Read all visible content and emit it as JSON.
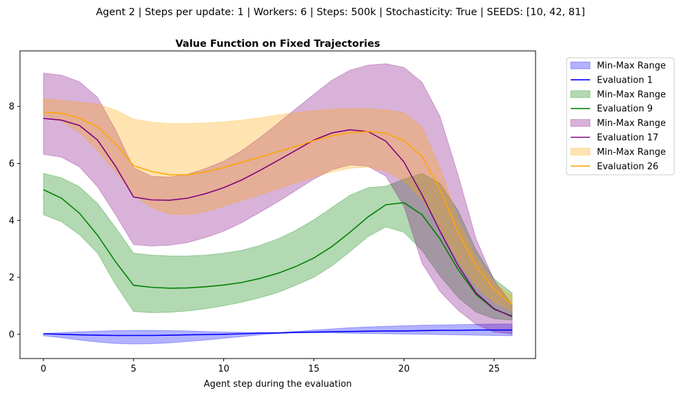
{
  "chart_data": {
    "type": "line",
    "suptitle": "Agent 2 | Steps per update: 1 | Workers: 6 | Steps: 500k | Stochasticity: True | SEEDS: [10, 42, 81]",
    "title": "Value Function on Fixed Trajectories",
    "xlabel": "Agent step during the evaluation",
    "ylabel": "",
    "xlim": [
      -1.3,
      27.3
    ],
    "ylim": [
      -0.85,
      9.95
    ],
    "xticks": [
      0,
      5,
      10,
      15,
      20,
      25
    ],
    "yticks": [
      0,
      2,
      4,
      6,
      8
    ],
    "grid": false,
    "legend_position": "outside-right",
    "x": [
      0,
      1,
      2,
      3,
      4,
      5,
      6,
      7,
      8,
      9,
      10,
      11,
      12,
      13,
      14,
      15,
      16,
      17,
      18,
      19,
      20,
      21,
      22,
      23,
      24,
      25,
      26
    ],
    "series": [
      {
        "name": "Evaluation 1",
        "band_name": "Min-Max Range",
        "color": "#0000ff",
        "band_color": "#0000ff",
        "mean": [
          0.02,
          0.0,
          -0.02,
          -0.03,
          -0.04,
          -0.04,
          -0.04,
          -0.03,
          -0.02,
          -0.01,
          0.0,
          0.02,
          0.04,
          0.05,
          0.07,
          0.08,
          0.09,
          0.1,
          0.11,
          0.12,
          0.12,
          0.13,
          0.14,
          0.14,
          0.15,
          0.15,
          0.15
        ],
        "min": [
          -0.05,
          -0.12,
          -0.2,
          -0.27,
          -0.32,
          -0.34,
          -0.33,
          -0.3,
          -0.25,
          -0.2,
          -0.14,
          -0.08,
          -0.02,
          0.03,
          0.05,
          0.05,
          0.05,
          0.04,
          0.03,
          0.02,
          0.01,
          0.0,
          -0.01,
          -0.02,
          -0.03,
          -0.04,
          -0.05
        ],
        "max": [
          0.03,
          0.06,
          0.09,
          0.11,
          0.13,
          0.14,
          0.14,
          0.13,
          0.12,
          0.1,
          0.08,
          0.07,
          0.06,
          0.06,
          0.1,
          0.15,
          0.19,
          0.23,
          0.26,
          0.28,
          0.3,
          0.32,
          0.33,
          0.34,
          0.35,
          0.36,
          0.36
        ]
      },
      {
        "name": "Evaluation 9",
        "band_name": "Min-Max Range",
        "color": "#008000",
        "band_color": "#008000",
        "mean": [
          5.08,
          4.78,
          4.25,
          3.48,
          2.55,
          1.72,
          1.65,
          1.62,
          1.63,
          1.67,
          1.73,
          1.82,
          1.96,
          2.14,
          2.38,
          2.68,
          3.08,
          3.58,
          4.12,
          4.55,
          4.62,
          4.2,
          3.35,
          2.28,
          1.4,
          0.88,
          0.64
        ],
        "min": [
          4.2,
          3.95,
          3.5,
          2.85,
          1.75,
          0.8,
          0.76,
          0.77,
          0.82,
          0.9,
          1.0,
          1.13,
          1.28,
          1.47,
          1.72,
          2.0,
          2.4,
          2.9,
          3.43,
          3.77,
          3.58,
          2.95,
          2.05,
          1.3,
          0.78,
          0.55,
          0.5
        ],
        "max": [
          5.65,
          5.5,
          5.18,
          4.6,
          3.75,
          2.85,
          2.78,
          2.75,
          2.75,
          2.78,
          2.85,
          2.95,
          3.12,
          3.35,
          3.65,
          4.02,
          4.45,
          4.88,
          5.15,
          5.2,
          5.45,
          5.65,
          5.3,
          4.35,
          2.95,
          1.95,
          1.45
        ]
      },
      {
        "name": "Evaluation 17",
        "band_name": "Min-Max Range",
        "color": "#800080",
        "band_color": "#800080",
        "mean": [
          7.58,
          7.52,
          7.33,
          6.82,
          5.9,
          4.82,
          4.72,
          4.71,
          4.78,
          4.94,
          5.15,
          5.42,
          5.75,
          6.1,
          6.46,
          6.82,
          7.07,
          7.18,
          7.12,
          6.78,
          6.05,
          4.9,
          3.62,
          2.42,
          1.45,
          0.9,
          0.62
        ],
        "min": [
          6.32,
          6.22,
          5.88,
          5.18,
          4.2,
          3.15,
          3.1,
          3.13,
          3.22,
          3.4,
          3.62,
          3.92,
          4.28,
          4.65,
          5.05,
          5.45,
          5.78,
          5.95,
          5.9,
          5.55,
          4.5,
          2.5,
          1.5,
          0.85,
          0.35,
          0.08,
          0.02
        ],
        "max": [
          9.17,
          9.1,
          8.87,
          8.32,
          7.18,
          5.85,
          5.55,
          5.52,
          5.62,
          5.82,
          6.08,
          6.45,
          6.9,
          7.4,
          7.92,
          8.42,
          8.92,
          9.27,
          9.45,
          9.5,
          9.37,
          8.85,
          7.65,
          5.6,
          3.35,
          1.9,
          1.05
        ]
      },
      {
        "name": "Evaluation 26",
        "band_name": "Min-Max Range",
        "color": "#ffa500",
        "band_color": "#ffa500",
        "mean": [
          7.8,
          7.76,
          7.58,
          7.28,
          6.7,
          5.92,
          5.72,
          5.6,
          5.6,
          5.7,
          5.86,
          6.04,
          6.22,
          6.41,
          6.6,
          6.8,
          6.97,
          7.08,
          7.12,
          7.06,
          6.8,
          6.25,
          5.08,
          3.6,
          2.4,
          1.58,
          1.05
        ],
        "min": [
          7.68,
          7.48,
          7.08,
          6.45,
          5.72,
          4.88,
          4.45,
          4.22,
          4.2,
          4.3,
          4.5,
          4.7,
          4.9,
          5.1,
          5.32,
          5.52,
          5.7,
          5.83,
          5.87,
          5.73,
          5.38,
          4.75,
          3.72,
          2.58,
          1.7,
          1.12,
          0.82
        ],
        "max": [
          8.27,
          8.22,
          8.15,
          8.08,
          7.88,
          7.55,
          7.45,
          7.4,
          7.4,
          7.42,
          7.46,
          7.52,
          7.6,
          7.7,
          7.78,
          7.85,
          7.9,
          7.93,
          7.92,
          7.88,
          7.78,
          7.28,
          5.85,
          4.05,
          2.72,
          1.82,
          1.35
        ]
      }
    ]
  }
}
